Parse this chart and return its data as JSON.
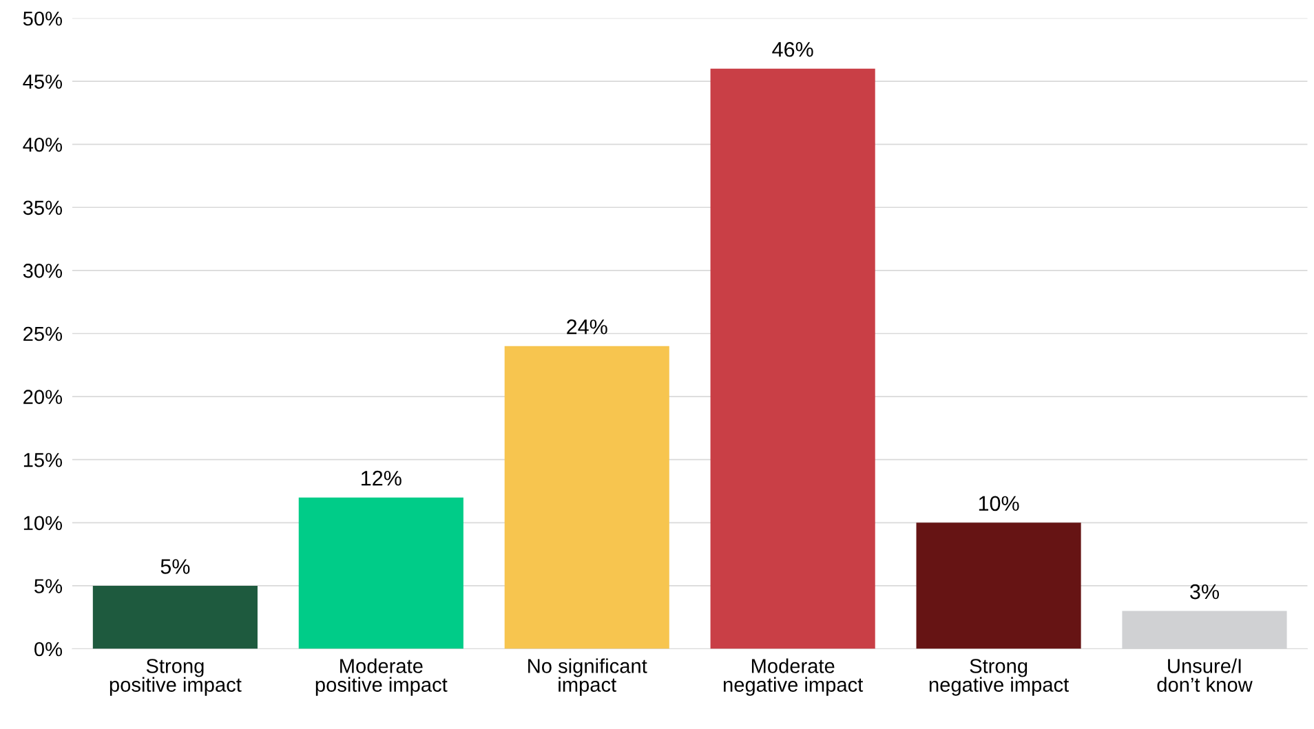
{
  "chart_data": {
    "type": "bar",
    "categories": [
      "Strong positive impact",
      "Moderate positive impact",
      "No significant impact",
      "Moderate negative impact",
      "Strong negative impact",
      "Unsure/I don’t know"
    ],
    "values": [
      5,
      12,
      24,
      46,
      10,
      3
    ],
    "colors": [
      "#1e5a3e",
      "#00cc88",
      "#f7c54f",
      "#c93f46",
      "#661414",
      "#d0d1d3"
    ],
    "ylim": [
      0,
      50
    ],
    "yticks": [
      {
        "value": 0,
        "label": "0%"
      },
      {
        "value": 5,
        "label": "5%"
      },
      {
        "value": 10,
        "label": "10%"
      },
      {
        "value": 15,
        "label": "15%"
      },
      {
        "value": 20,
        "label": "20%"
      },
      {
        "value": 25,
        "label": "25%"
      },
      {
        "value": 30,
        "label": "30%"
      },
      {
        "value": 35,
        "label": "35%"
      },
      {
        "value": 40,
        "label": "40%"
      },
      {
        "value": 45,
        "label": "45%"
      },
      {
        "value": 50,
        "label": "50%"
      }
    ],
    "value_labels": [
      "5%",
      "12%",
      "24%",
      "46%",
      "10%",
      "3%"
    ],
    "grid": "y",
    "legend": false
  }
}
